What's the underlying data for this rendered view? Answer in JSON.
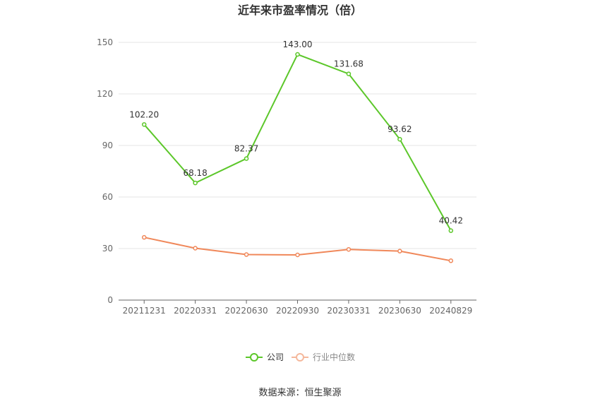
{
  "chart_data": {
    "type": "line",
    "title": "近年来市盈率情况（倍）",
    "categories": [
      "20211231",
      "20220331",
      "20220630",
      "20220930",
      "20230331",
      "20230630",
      "20240829"
    ],
    "series": [
      {
        "name": "公司",
        "values": [
          102.2,
          68.18,
          82.37,
          143.0,
          131.68,
          93.62,
          40.42
        ],
        "color": "#5cc72a",
        "labels": [
          "102.20",
          "68.18",
          "82.37",
          "143.00",
          "131.68",
          "93.62",
          "40.42"
        ]
      },
      {
        "name": "行业中位数",
        "values": [
          36.5,
          30.2,
          26.5,
          26.3,
          29.5,
          28.5,
          22.9
        ],
        "color": "#f0885a"
      }
    ],
    "ylim": [
      0,
      150
    ],
    "yticks": [
      "0",
      "30",
      "60",
      "90",
      "120",
      "150"
    ],
    "grid": true,
    "legend_position": "bottom"
  },
  "source": "数据来源：恒生聚源"
}
